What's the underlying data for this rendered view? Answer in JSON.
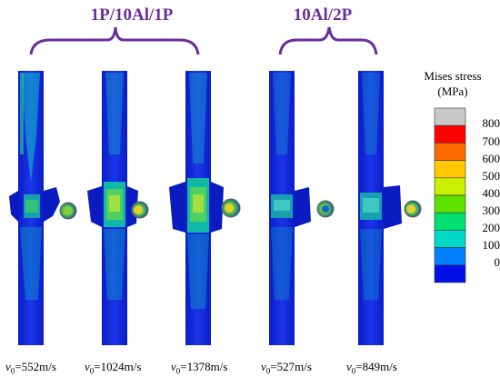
{
  "groups": [
    {
      "title": "1P/10Al/1P"
    },
    {
      "title": "10Al/2P"
    }
  ],
  "cases": [
    {
      "label_prefix": "v",
      "label_sub": "0",
      "label_value": "=552m/s"
    },
    {
      "label_prefix": "v",
      "label_sub": "0",
      "label_value": "=1024m/s"
    },
    {
      "label_prefix": "v",
      "label_sub": "0",
      "label_value": "=1378m/s"
    },
    {
      "label_prefix": "v",
      "label_sub": "0",
      "label_value": "=527m/s"
    },
    {
      "label_prefix": "v",
      "label_sub": "0",
      "label_value": "=849m/s"
    }
  ],
  "legend": {
    "title_line1": "Mises stress",
    "title_line2": "(MPa)",
    "ticks": [
      "800",
      "700",
      "600",
      "500",
      "400",
      "300",
      "200",
      "100",
      "0"
    ],
    "colors": [
      "#c8c8c8",
      "#ff0000",
      "#ff6a00",
      "#ffc800",
      "#c8f000",
      "#5ee000",
      "#00e070",
      "#00d8c8",
      "#0080ff",
      "#0010e8"
    ]
  },
  "colors": {
    "accent": "#6a2f9c",
    "plate": "#0f22d8",
    "plate_dark": "#0a1aa8"
  }
}
